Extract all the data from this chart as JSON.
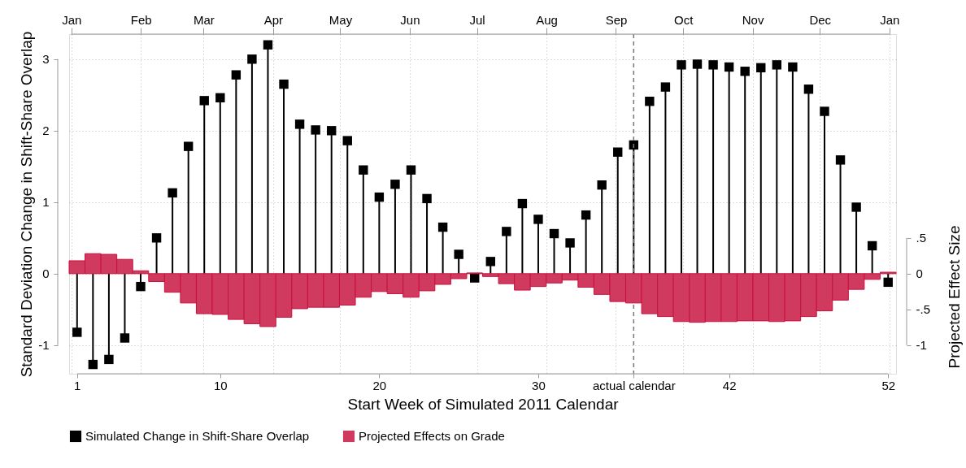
{
  "chart_data": {
    "type": "lollipop",
    "xlabel": "Start Week of Simulated 2011 Calendar",
    "ylabel": "Standard Deviation Change in Shift-Share Overlap",
    "y2label": "Projected Effect Size",
    "x": [
      1,
      2,
      3,
      4,
      5,
      6,
      7,
      8,
      9,
      10,
      11,
      12,
      13,
      14,
      15,
      16,
      17,
      18,
      19,
      20,
      21,
      22,
      23,
      24,
      25,
      26,
      27,
      28,
      29,
      30,
      31,
      32,
      33,
      34,
      35,
      36,
      37,
      38,
      39,
      40,
      41,
      42,
      43,
      44,
      45,
      46,
      47,
      48,
      49,
      50,
      51,
      52
    ],
    "series": [
      {
        "name": "Simulated Change in Shift-Share Overlap",
        "type": "lollipop",
        "color": "#000000",
        "values": [
          -0.82,
          -1.27,
          -1.2,
          -0.9,
          -0.18,
          0.5,
          1.13,
          1.78,
          2.42,
          2.46,
          2.78,
          3.0,
          3.2,
          2.65,
          2.09,
          2.01,
          2.0,
          1.86,
          1.45,
          1.07,
          1.25,
          1.45,
          1.05,
          0.65,
          0.27,
          -0.06,
          0.17,
          0.59,
          0.98,
          0.76,
          0.56,
          0.43,
          0.82,
          1.24,
          1.7,
          1.8,
          2.41,
          2.61,
          2.92,
          2.93,
          2.92,
          2.89,
          2.83,
          2.88,
          2.92,
          2.89,
          2.58,
          2.27,
          1.59,
          0.93,
          0.39,
          -0.12
        ]
      },
      {
        "name": "Projected Effects on Grade",
        "type": "bar",
        "axis": "y2",
        "color": "#cf3a5e",
        "values": [
          0.18,
          0.28,
          0.27,
          0.2,
          0.04,
          -0.11,
          -0.26,
          -0.41,
          -0.56,
          -0.57,
          -0.64,
          -0.7,
          -0.74,
          -0.61,
          -0.49,
          -0.47,
          -0.47,
          -0.44,
          -0.33,
          -0.25,
          -0.28,
          -0.33,
          -0.24,
          -0.15,
          -0.07,
          0.01,
          -0.04,
          -0.14,
          -0.23,
          -0.18,
          -0.13,
          -0.09,
          -0.19,
          -0.29,
          -0.39,
          -0.41,
          -0.56,
          -0.6,
          -0.67,
          -0.68,
          -0.67,
          -0.67,
          -0.66,
          -0.66,
          -0.67,
          -0.66,
          -0.6,
          -0.52,
          -0.37,
          -0.22,
          -0.08,
          0.02
        ]
      }
    ],
    "xlim": [
      0.5,
      52.5
    ],
    "xticks": [
      1,
      10,
      20,
      30,
      {
        "value": 36,
        "label": "actual calendar"
      },
      42,
      52
    ],
    "x2lim": [
      "2010-12-31",
      "2012-01-04"
    ],
    "x2ticks": [
      {
        "value": "2011-01",
        "label": "Jan"
      },
      {
        "value": "2011-02",
        "label": "Feb"
      },
      {
        "value": "2011-03",
        "label": "Mar"
      },
      {
        "value": "2011-04",
        "label": "Apr"
      },
      {
        "value": "2011-05",
        "label": "May"
      },
      {
        "value": "2011-06",
        "label": "Jun"
      },
      {
        "value": "2011-07",
        "label": "Jul"
      },
      {
        "value": "2011-08",
        "label": "Aug"
      },
      {
        "value": "2011-09",
        "label": "Sep"
      },
      {
        "value": "2011-10",
        "label": "Oct"
      },
      {
        "value": "2011-11",
        "label": "Nov"
      },
      {
        "value": "2011-12",
        "label": "Dec"
      },
      {
        "value": "2012-01",
        "label": "Jan"
      }
    ],
    "ylim": [
      -1.4,
      3.35
    ],
    "yticks": [
      -1,
      0,
      1,
      2,
      3
    ],
    "y2lim": [
      -1.4,
      3.35
    ],
    "y2ticks": [
      -1,
      {
        "value": -0.5,
        "label": "-.5"
      },
      0,
      {
        "value": 0.5,
        "label": ".5"
      }
    ],
    "ref_lines": [
      {
        "axis": "x",
        "value": 36,
        "line_style": "dashed",
        "color": "#777777"
      }
    ],
    "grid": true,
    "legend": "bottom",
    "marker": "square"
  }
}
